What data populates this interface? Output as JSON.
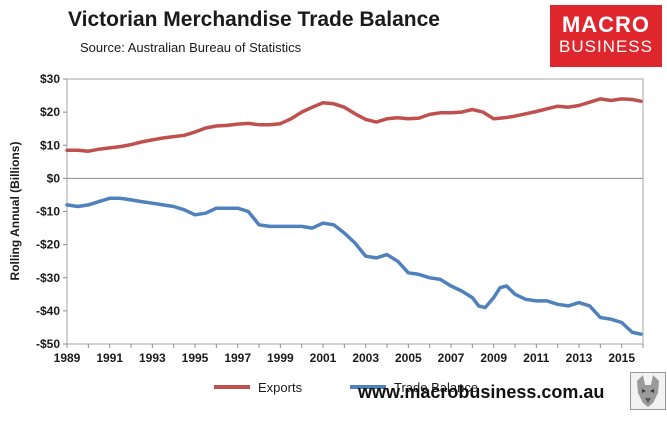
{
  "header": {
    "title": "Victorian Merchandise Trade Balance",
    "source": "Source: Australian Bureau of Statistics"
  },
  "logo": {
    "line1": "MACRO",
    "line2": "BUSINESS"
  },
  "footer": {
    "website": "www.macrobusiness.com.au"
  },
  "chart_data": {
    "type": "line",
    "title": "Victorian Merchandise Trade Balance",
    "xlabel": "",
    "ylabel": "Rolling Annual (Billions)",
    "xlim": [
      1989,
      2016
    ],
    "ylim": [
      -50,
      30
    ],
    "x_ticks": [
      1989,
      1991,
      1993,
      1995,
      1997,
      1999,
      2001,
      2003,
      2005,
      2007,
      2009,
      2011,
      2013,
      2015
    ],
    "x_tick_labels": [
      "1989",
      "1991",
      "1993",
      "1995",
      "1997",
      "1999",
      "2001",
      "2003",
      "2005",
      "2007",
      "2009",
      "2011",
      "2013",
      "2015"
    ],
    "y_ticks": [
      30,
      20,
      10,
      0,
      -10,
      -20,
      -30,
      -40,
      -50
    ],
    "y_tick_labels": [
      "$30",
      "$20",
      "$10",
      "$0",
      "-$10",
      "-$20",
      "-$30",
      "-$40",
      "-$50"
    ],
    "grid": false,
    "legend_position": "bottom",
    "colors": {
      "Exports": "#c0504d",
      "Trade Balance": "#4f81bd"
    },
    "series": [
      {
        "name": "Exports",
        "x": [
          1989.0,
          1989.5,
          1990.0,
          1990.5,
          1991.0,
          1991.5,
          1992.0,
          1992.5,
          1993.0,
          1993.5,
          1994.0,
          1994.5,
          1995.0,
          1995.5,
          1996.0,
          1996.5,
          1997.0,
          1997.5,
          1998.0,
          1998.5,
          1999.0,
          1999.5,
          2000.0,
          2000.5,
          2001.0,
          2001.5,
          2002.0,
          2002.5,
          2003.0,
          2003.5,
          2004.0,
          2004.5,
          2005.0,
          2005.5,
          2006.0,
          2006.5,
          2007.0,
          2007.5,
          2008.0,
          2008.5,
          2009.0,
          2009.5,
          2010.0,
          2010.5,
          2011.0,
          2011.5,
          2012.0,
          2012.5,
          2013.0,
          2013.5,
          2014.0,
          2014.5,
          2015.0,
          2015.5,
          2015.9
        ],
        "values": [
          8.5,
          8.5,
          8.2,
          8.8,
          9.2,
          9.6,
          10.2,
          11.0,
          11.6,
          12.2,
          12.6,
          13.0,
          14.0,
          15.2,
          15.8,
          16.0,
          16.4,
          16.6,
          16.2,
          16.2,
          16.5,
          18.0,
          20.0,
          21.5,
          22.8,
          22.5,
          21.5,
          19.5,
          17.8,
          17.0,
          18.0,
          18.3,
          18.0,
          18.2,
          19.3,
          19.8,
          19.8,
          20.0,
          20.8,
          20.0,
          18.0,
          18.3,
          18.8,
          19.5,
          20.2,
          21.0,
          21.8,
          21.5,
          22.0,
          23.0,
          24.0,
          23.5,
          24.0,
          23.8,
          23.3
        ]
      },
      {
        "name": "Trade Balance",
        "x": [
          1989.0,
          1989.5,
          1990.0,
          1990.5,
          1991.0,
          1991.5,
          1992.0,
          1992.5,
          1993.0,
          1993.5,
          1994.0,
          1994.5,
          1995.0,
          1995.5,
          1996.0,
          1996.5,
          1997.0,
          1997.5,
          1998.0,
          1998.5,
          1999.0,
          1999.5,
          2000.0,
          2000.5,
          2001.0,
          2001.5,
          2002.0,
          2002.5,
          2003.0,
          2003.5,
          2004.0,
          2004.5,
          2005.0,
          2005.5,
          2006.0,
          2006.5,
          2007.0,
          2007.5,
          2008.0,
          2008.3,
          2008.6,
          2009.0,
          2009.3,
          2009.6,
          2010.0,
          2010.5,
          2011.0,
          2011.5,
          2012.0,
          2012.5,
          2013.0,
          2013.5,
          2014.0,
          2014.5,
          2015.0,
          2015.5,
          2015.9
        ],
        "values": [
          -8.0,
          -8.5,
          -8.0,
          -7.0,
          -6.0,
          -6.0,
          -6.5,
          -7.0,
          -7.5,
          -8.0,
          -8.5,
          -9.5,
          -11.0,
          -10.5,
          -9.0,
          -9.0,
          -9.0,
          -10.0,
          -14.0,
          -14.5,
          -14.5,
          -14.5,
          -14.5,
          -15.0,
          -13.5,
          -14.0,
          -16.5,
          -19.5,
          -23.5,
          -24.0,
          -23.0,
          -25.0,
          -28.5,
          -29.0,
          -30.0,
          -30.5,
          -32.5,
          -34.0,
          -36.0,
          -38.5,
          -39.0,
          -36.0,
          -33.0,
          -32.5,
          -35.0,
          -36.5,
          -37.0,
          -37.0,
          -38.0,
          -38.5,
          -37.5,
          -38.5,
          -42.0,
          -42.5,
          -43.5,
          -46.5,
          -47.0
        ]
      }
    ]
  }
}
